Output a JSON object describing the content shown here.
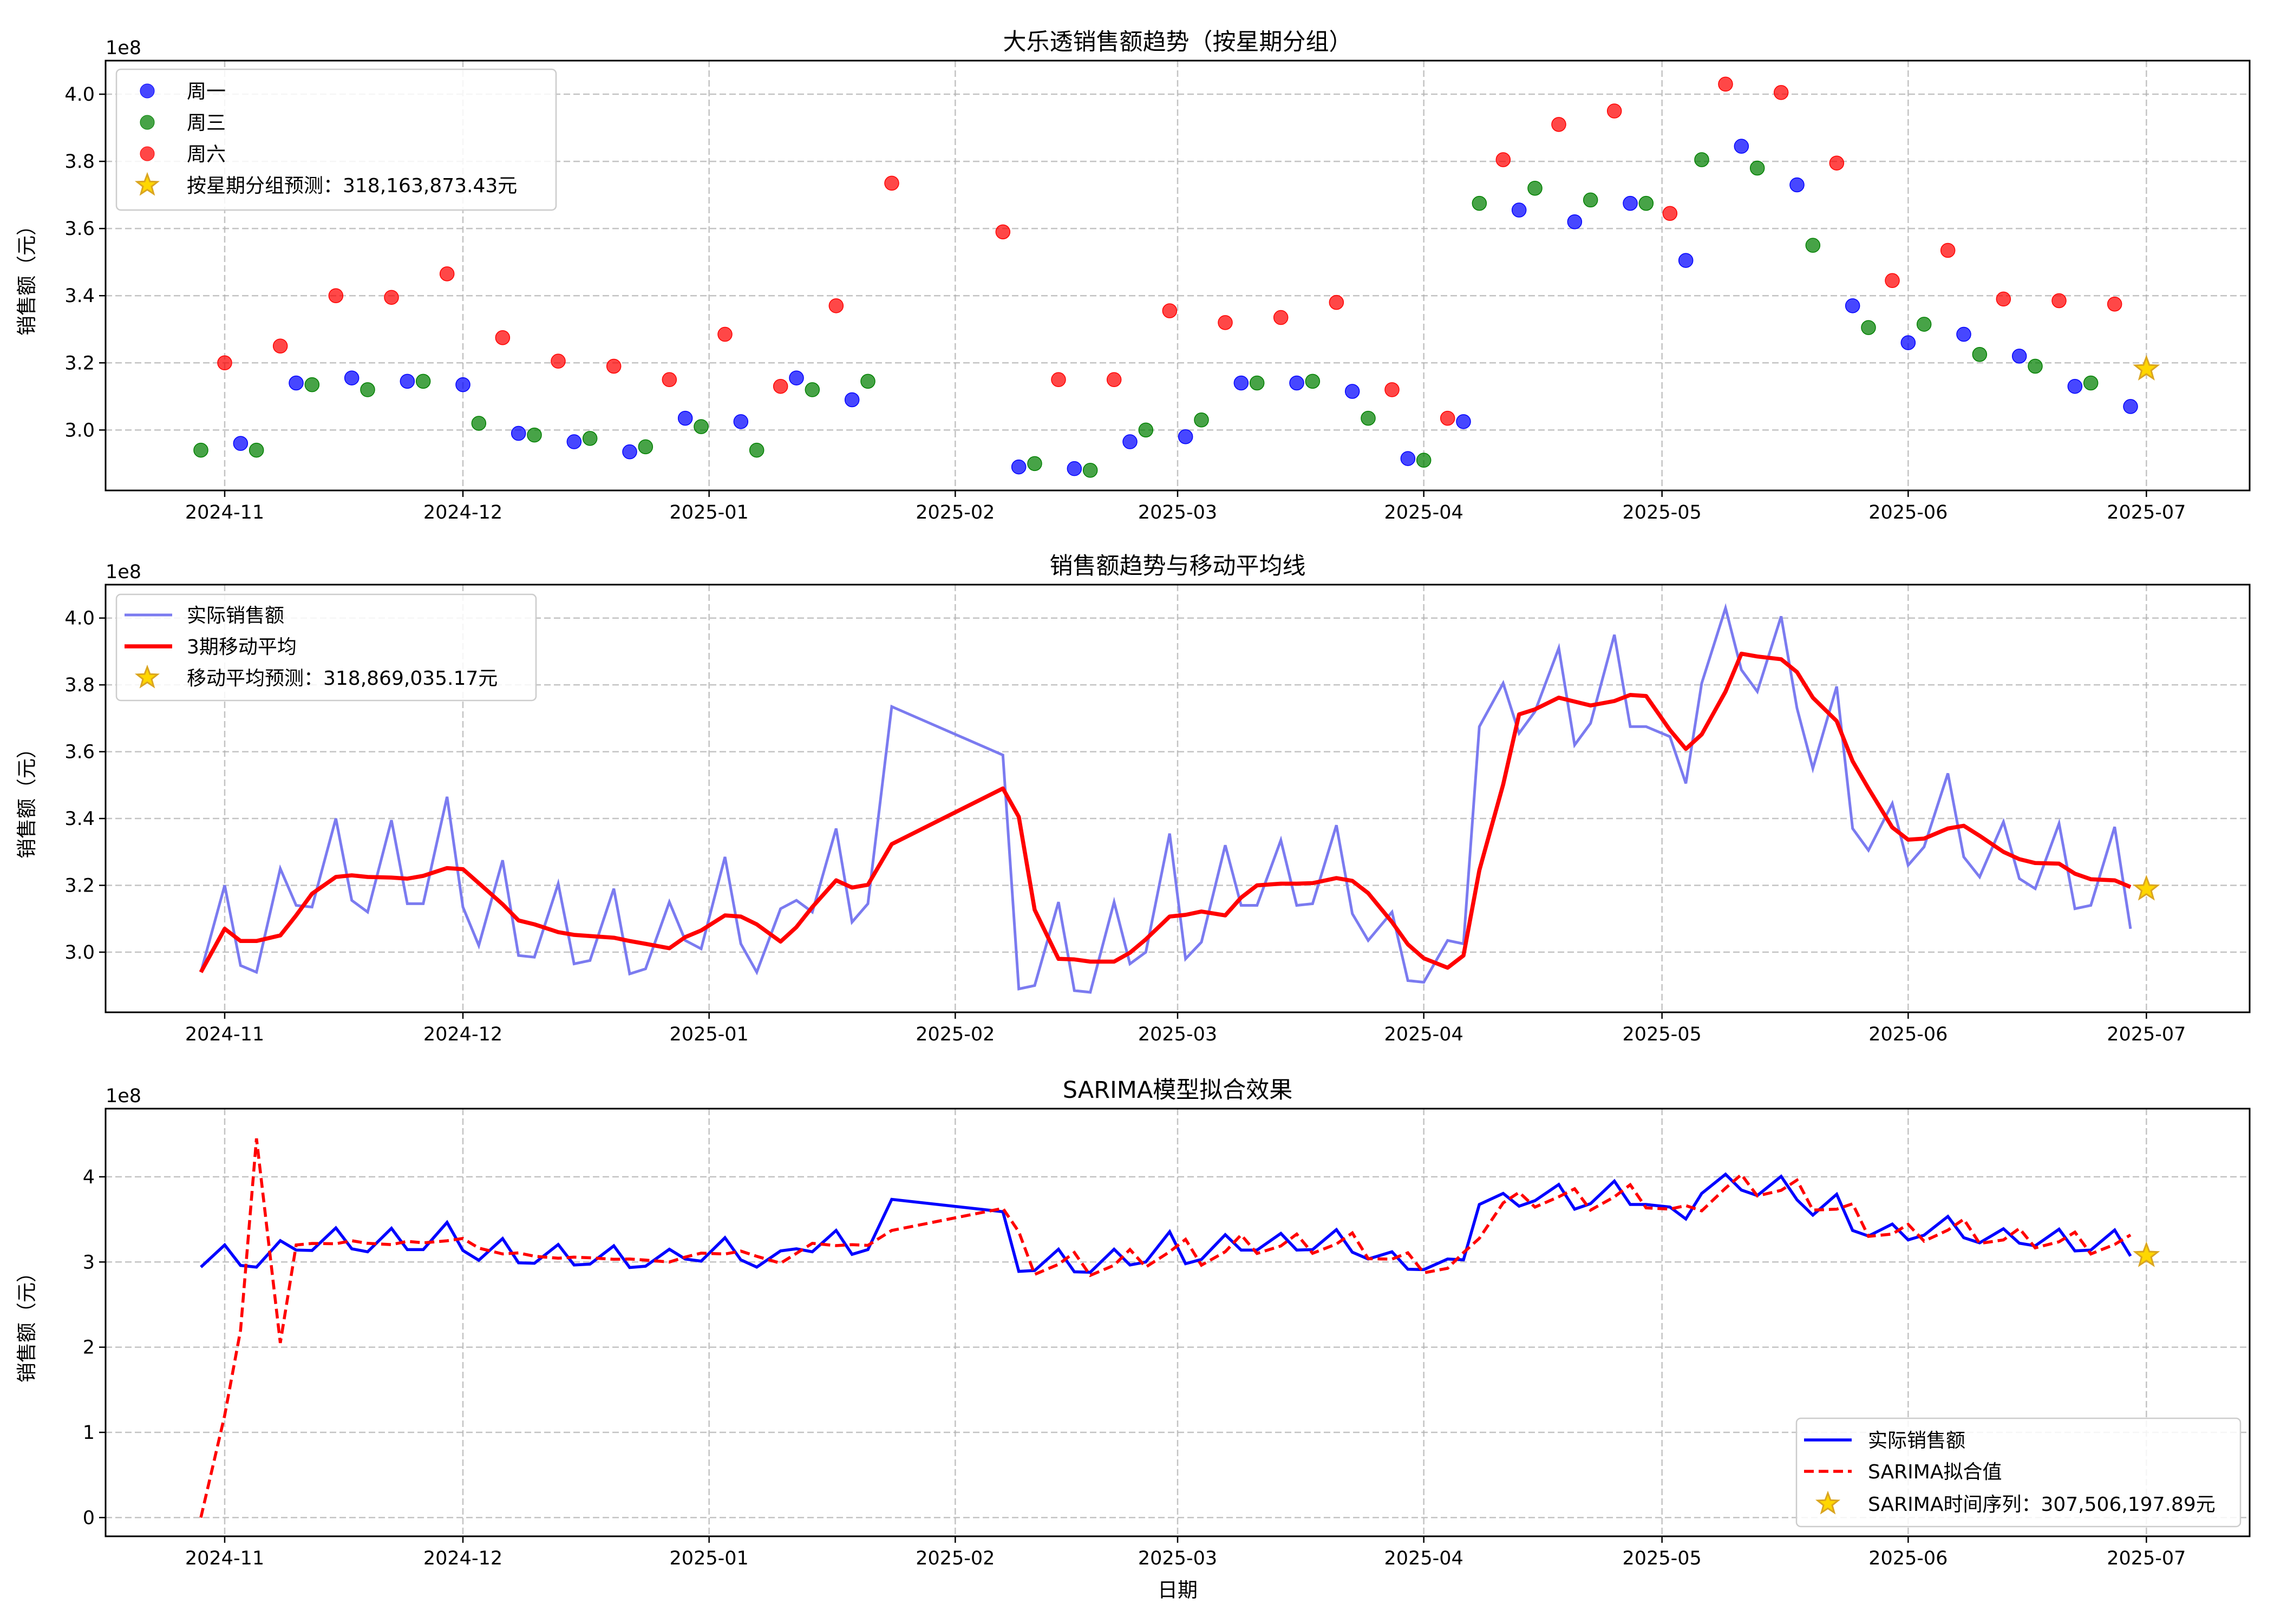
{
  "chart_data": [
    {
      "type": "scatter",
      "title": "大乐透销售额趋势（按星期分组）",
      "xlabel": "",
      "ylabel": "销售额（元）",
      "y_scale_label": "1e8",
      "y_unit": 100000000,
      "ylim": [
        2.82,
        4.1
      ],
      "yticks": [
        3.0,
        3.2,
        3.4,
        3.6,
        3.8,
        4.0
      ],
      "ytick_labels": [
        "3.0",
        "3.2",
        "3.4",
        "3.6",
        "3.8",
        "4.0"
      ],
      "grid": true,
      "legend_position": "upper-left",
      "series": [
        {
          "name": "周一",
          "color": "#0000ff",
          "points": [
            [
              "2024-11-03",
              2.96
            ],
            [
              "2024-11-10",
              3.14
            ],
            [
              "2024-11-17",
              3.155
            ],
            [
              "2024-11-24",
              3.145
            ],
            [
              "2024-12-01",
              3.135
            ],
            [
              "2024-12-08",
              2.99
            ],
            [
              "2024-12-15",
              2.965
            ],
            [
              "2024-12-22",
              2.935
            ],
            [
              "2024-12-29",
              3.035
            ],
            [
              "2025-01-05",
              3.025
            ],
            [
              "2025-01-12",
              3.155
            ],
            [
              "2025-01-19",
              3.09
            ],
            [
              "2025-02-09",
              2.89
            ],
            [
              "2025-02-16",
              2.885
            ],
            [
              "2025-02-23",
              2.965
            ],
            [
              "2025-03-02",
              2.98
            ],
            [
              "2025-03-09",
              3.14
            ],
            [
              "2025-03-16",
              3.14
            ],
            [
              "2025-03-23",
              3.115
            ],
            [
              "2025-03-30",
              2.915
            ],
            [
              "2025-04-06",
              3.025
            ],
            [
              "2025-04-13",
              3.655
            ],
            [
              "2025-04-20",
              3.62
            ],
            [
              "2025-04-27",
              3.675
            ],
            [
              "2025-05-04",
              3.505
            ],
            [
              "2025-05-11",
              3.845
            ],
            [
              "2025-05-18",
              3.73
            ],
            [
              "2025-05-25",
              3.37
            ],
            [
              "2025-06-01",
              3.26
            ],
            [
              "2025-06-08",
              3.285
            ],
            [
              "2025-06-15",
              3.22
            ],
            [
              "2025-06-22",
              3.13
            ],
            [
              "2025-06-29",
              3.07
            ]
          ]
        },
        {
          "name": "周三",
          "color": "#008000",
          "points": [
            [
              "2024-10-29",
              2.94
            ],
            [
              "2024-11-05",
              2.94
            ],
            [
              "2024-11-12",
              3.135
            ],
            [
              "2024-11-19",
              3.12
            ],
            [
              "2024-11-26",
              3.145
            ],
            [
              "2024-12-03",
              3.02
            ],
            [
              "2024-12-10",
              2.985
            ],
            [
              "2024-12-17",
              2.975
            ],
            [
              "2024-12-24",
              2.95
            ],
            [
              "2024-12-31",
              3.01
            ],
            [
              "2025-01-07",
              2.94
            ],
            [
              "2025-01-14",
              3.12
            ],
            [
              "2025-01-21",
              3.145
            ],
            [
              "2025-02-11",
              2.9
            ],
            [
              "2025-02-18",
              2.88
            ],
            [
              "2025-02-25",
              3.0
            ],
            [
              "2025-03-04",
              3.03
            ],
            [
              "2025-03-11",
              3.14
            ],
            [
              "2025-03-18",
              3.145
            ],
            [
              "2025-03-25",
              3.035
            ],
            [
              "2025-04-01",
              2.91
            ],
            [
              "2025-04-08",
              3.675
            ],
            [
              "2025-04-15",
              3.72
            ],
            [
              "2025-04-22",
              3.685
            ],
            [
              "2025-04-29",
              3.675
            ],
            [
              "2025-05-06",
              3.805
            ],
            [
              "2025-05-13",
              3.78
            ],
            [
              "2025-05-20",
              3.55
            ],
            [
              "2025-05-27",
              3.305
            ],
            [
              "2025-06-03",
              3.315
            ],
            [
              "2025-06-10",
              3.225
            ],
            [
              "2025-06-17",
              3.19
            ],
            [
              "2025-06-24",
              3.14
            ]
          ]
        },
        {
          "name": "周六",
          "color": "#ff0000",
          "points": [
            [
              "2024-11-01",
              3.2
            ],
            [
              "2024-11-08",
              3.25
            ],
            [
              "2024-11-15",
              3.4
            ],
            [
              "2024-11-22",
              3.395
            ],
            [
              "2024-11-29",
              3.465
            ],
            [
              "2024-12-06",
              3.275
            ],
            [
              "2024-12-13",
              3.205
            ],
            [
              "2024-12-20",
              3.19
            ],
            [
              "2024-12-27",
              3.15
            ],
            [
              "2025-01-03",
              3.285
            ],
            [
              "2025-01-10",
              3.13
            ],
            [
              "2025-01-17",
              3.37
            ],
            [
              "2025-01-24",
              3.735
            ],
            [
              "2025-02-07",
              3.59
            ],
            [
              "2025-02-14",
              3.15
            ],
            [
              "2025-02-21",
              3.15
            ],
            [
              "2025-02-28",
              3.355
            ],
            [
              "2025-03-07",
              3.32
            ],
            [
              "2025-03-14",
              3.335
            ],
            [
              "2025-03-21",
              3.38
            ],
            [
              "2025-03-28",
              3.12
            ],
            [
              "2025-04-04",
              3.035
            ],
            [
              "2025-04-11",
              3.805
            ],
            [
              "2025-04-18",
              3.91
            ],
            [
              "2025-04-25",
              3.95
            ],
            [
              "2025-05-02",
              3.645
            ],
            [
              "2025-05-09",
              4.03
            ],
            [
              "2025-05-16",
              4.005
            ],
            [
              "2025-05-23",
              3.795
            ],
            [
              "2025-05-30",
              3.445
            ],
            [
              "2025-06-06",
              3.535
            ],
            [
              "2025-06-13",
              3.39
            ],
            [
              "2025-06-20",
              3.385
            ],
            [
              "2025-06-27",
              3.375
            ]
          ]
        }
      ],
      "forecast": {
        "label": "按星期分组预测：318,163,873.43元",
        "x": "2025-07-01",
        "y": 3.1816
      }
    },
    {
      "type": "line",
      "title": "销售额趋势与移动平均线",
      "xlabel": "",
      "ylabel": "销售额（元）",
      "y_scale_label": "1e8",
      "y_unit": 100000000,
      "ylim": [
        2.82,
        4.1
      ],
      "yticks": [
        3.0,
        3.2,
        3.4,
        3.6,
        3.8,
        4.0
      ],
      "ytick_labels": [
        "3.0",
        "3.2",
        "3.4",
        "3.6",
        "3.8",
        "4.0"
      ],
      "grid": true,
      "legend_position": "upper-left",
      "series": [
        {
          "name": "实际销售额",
          "color": "#7b7bf0"
        },
        {
          "name": "3期移动平均",
          "color": "#ff0000"
        }
      ],
      "actual_source": "combined",
      "forecast": {
        "label": "移动平均预测：318,869,035.17元",
        "x": "2025-07-01",
        "y": 3.1887
      }
    },
    {
      "type": "line",
      "title": "SARIMA模型拟合效果",
      "xlabel": "日期",
      "ylabel": "销售额（元）",
      "y_scale_label": "1e8",
      "y_unit": 100000000,
      "ylim": [
        -0.22,
        4.8
      ],
      "yticks": [
        0,
        1,
        2,
        3,
        4
      ],
      "ytick_labels": [
        "0",
        "1",
        "2",
        "3",
        "4"
      ],
      "grid": true,
      "legend_position": "lower-right",
      "series": [
        {
          "name": "实际销售额",
          "color": "#0000ff",
          "style": "solid"
        },
        {
          "name": "SARIMA拟合值",
          "color": "#ff0000",
          "style": "dashed"
        }
      ],
      "sarima_start": [
        [
          "2024-10-29",
          0.0
        ],
        [
          "2024-11-01",
          1.2
        ],
        [
          "2024-11-03",
          2.2
        ],
        [
          "2024-11-05",
          4.45
        ],
        [
          "2024-11-08",
          2.05
        ],
        [
          "2024-11-10",
          3.2
        ]
      ],
      "forecast": {
        "label": "SARIMA时间序列：307,506,197.89元",
        "x": "2025-07-01",
        "y": 3.075
      }
    }
  ],
  "x_axis": {
    "min": "2024-10-17",
    "max": "2025-07-14",
    "ticks": [
      "2024-11-01",
      "2024-12-01",
      "2025-01-01",
      "2025-02-01",
      "2025-03-01",
      "2025-04-01",
      "2025-05-01",
      "2025-06-01",
      "2025-07-01"
    ],
    "tick_labels": [
      "2024-11",
      "2024-12",
      "2025-01",
      "2025-02",
      "2025-03",
      "2025-04",
      "2025-05",
      "2025-06",
      "2025-07"
    ]
  },
  "colors": {
    "forecast_star_fill": "#ffd700",
    "forecast_star_edge": "#daa520",
    "grid": "#b0b0b0"
  }
}
